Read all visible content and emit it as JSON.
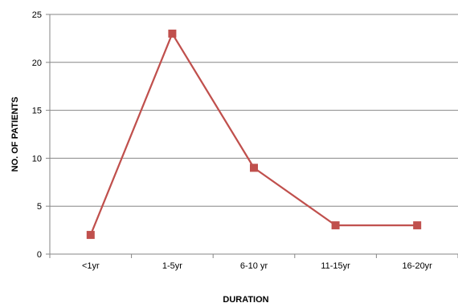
{
  "chart_data": {
    "type": "line",
    "title": "",
    "xlabel": "DURATION",
    "ylabel": "NO. OF PATIENTS",
    "categories": [
      "<1yr",
      "1-5yr",
      "6-10 yr",
      "11-15yr",
      "16-20yr"
    ],
    "series": [
      {
        "values": [
          2,
          23,
          9,
          3,
          3
        ],
        "color": "#c0504d",
        "marker": "square"
      }
    ],
    "ylim": [
      0,
      25
    ],
    "yticks": [
      0,
      5,
      10,
      15,
      20,
      25
    ],
    "grid": true,
    "legend": "none"
  }
}
